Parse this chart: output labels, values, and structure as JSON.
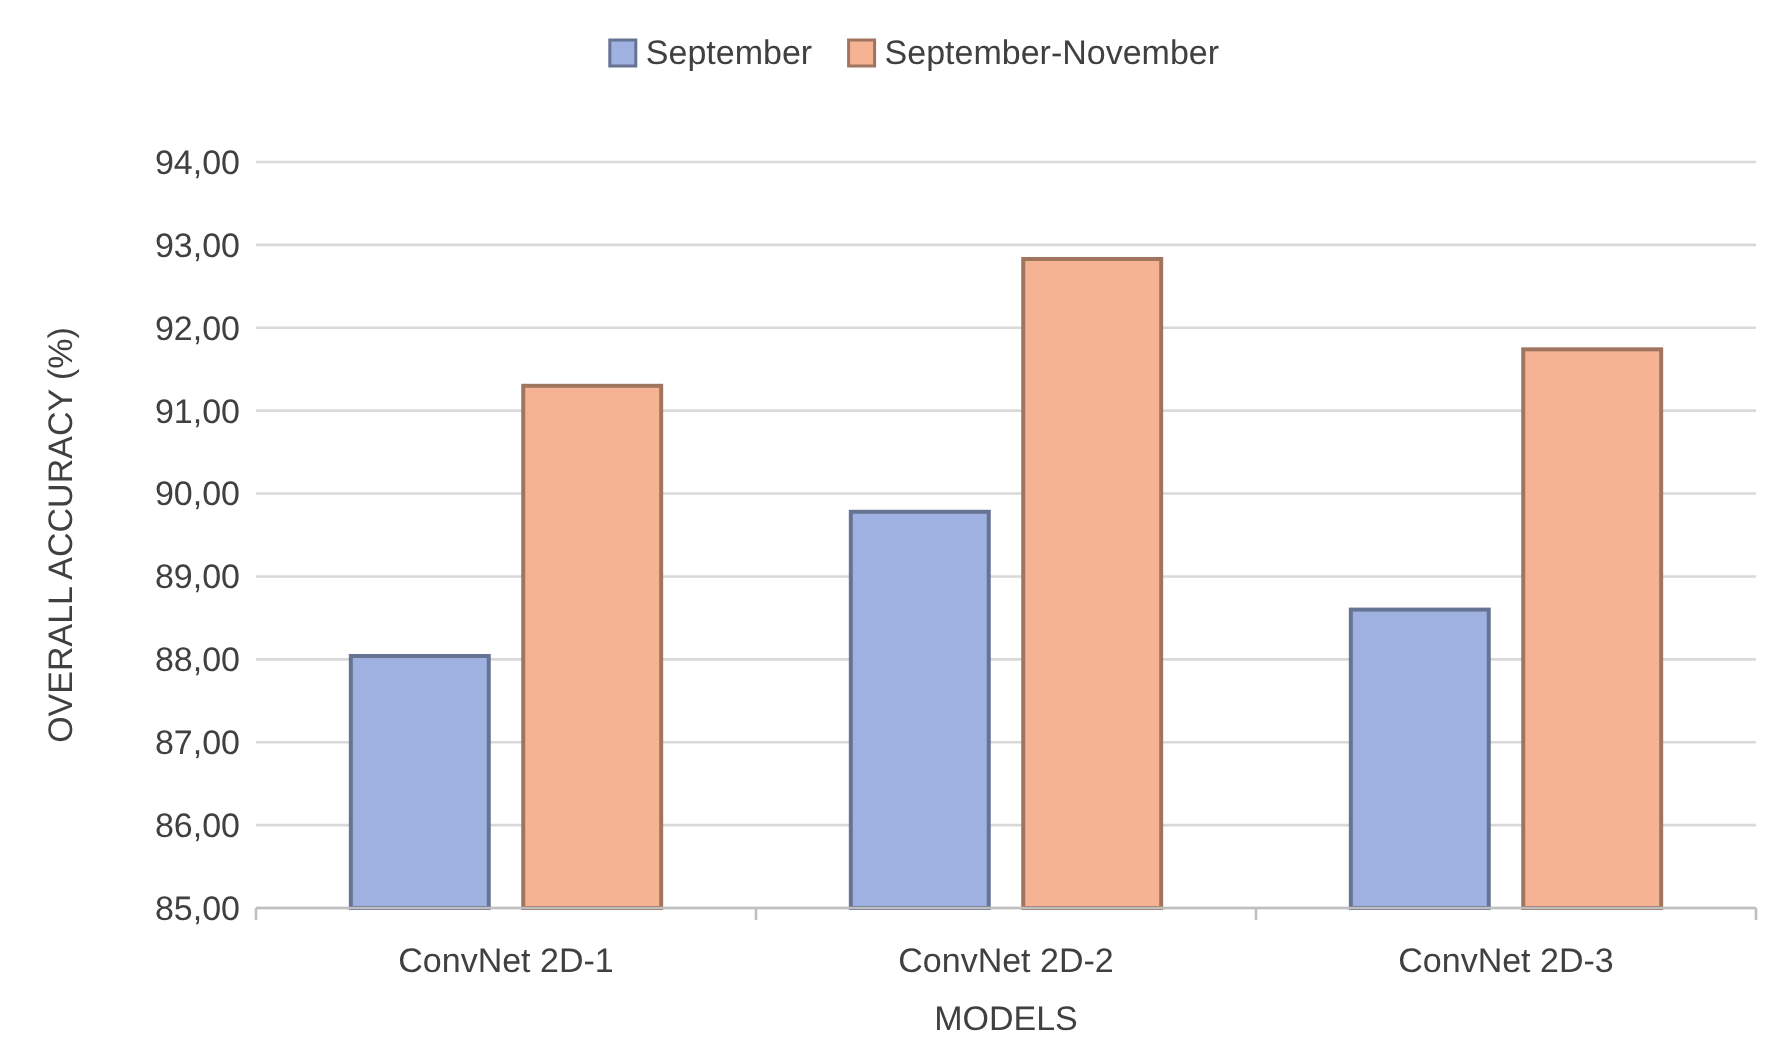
{
  "chart_data": {
    "type": "bar",
    "xlabel": "MODELS",
    "ylabel": "OVERALL ACCURACY (%)",
    "categories": [
      "ConvNet 2D-1",
      "ConvNet 2D-2",
      "ConvNet 2D-3"
    ],
    "series": [
      {
        "name": "September",
        "color": "#9eb1e0",
        "values": [
          88.04,
          89.78,
          88.6
        ]
      },
      {
        "name": "September-November",
        "color": "#f6b394",
        "values": [
          91.3,
          92.83,
          91.74
        ]
      }
    ],
    "ylim": [
      85,
      94
    ],
    "yticks": [
      {
        "value": 85,
        "label": "85,00"
      },
      {
        "value": 86,
        "label": "86,00"
      },
      {
        "value": 87,
        "label": "87,00"
      },
      {
        "value": 88,
        "label": "88,00"
      },
      {
        "value": 89,
        "label": "89,00"
      },
      {
        "value": 90,
        "label": "90,00"
      },
      {
        "value": 91,
        "label": "91,00"
      },
      {
        "value": 92,
        "label": "92,00"
      },
      {
        "value": 93,
        "label": "93,00"
      },
      {
        "value": 94,
        "label": "94,00"
      }
    ],
    "grid": "y",
    "legend": "top"
  }
}
